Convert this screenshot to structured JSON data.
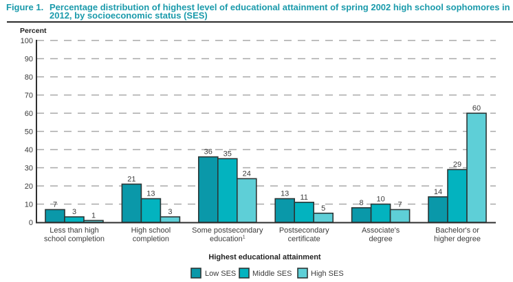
{
  "figure": {
    "label": "Figure 1.",
    "title_line1": "Percentage distribution of highest level of educational attainment of spring 2002 high school sophomores in",
    "title_line2": "2012, by socioeconomic status (SES)"
  },
  "chart_data": {
    "type": "bar",
    "title": "Percentage distribution of highest level of educational attainment of spring 2002 high school sophomores in 2012, by socioeconomic status (SES)",
    "ylabel": "Percent",
    "xlabel": "Highest educational attainment",
    "ylim": [
      0,
      100
    ],
    "yticks": [
      0,
      10,
      20,
      30,
      40,
      50,
      60,
      70,
      80,
      90,
      100
    ],
    "grid": true,
    "legend_position": "bottom",
    "categories": [
      {
        "lines": [
          "Less than high",
          "school completion"
        ],
        "footnote": ""
      },
      {
        "lines": [
          "High school",
          "completion"
        ],
        "footnote": ""
      },
      {
        "lines": [
          "Some postsecondary",
          "education"
        ],
        "footnote": "1"
      },
      {
        "lines": [
          "Postsecondary",
          "certificate"
        ],
        "footnote": ""
      },
      {
        "lines": [
          "Associate's",
          "degree"
        ],
        "footnote": ""
      },
      {
        "lines": [
          "Bachelor's or",
          "higher degree"
        ],
        "footnote": ""
      }
    ],
    "series": [
      {
        "name": "Low SES",
        "color": "#0a98a9",
        "values": [
          7,
          21,
          36,
          13,
          8,
          14
        ]
      },
      {
        "name": "Middle SES",
        "color": "#03b3bf",
        "values": [
          3,
          13,
          35,
          11,
          10,
          29
        ]
      },
      {
        "name": "High SES",
        "color": "#5ecfd7",
        "values": [
          1,
          3,
          24,
          5,
          7,
          60
        ]
      }
    ]
  }
}
